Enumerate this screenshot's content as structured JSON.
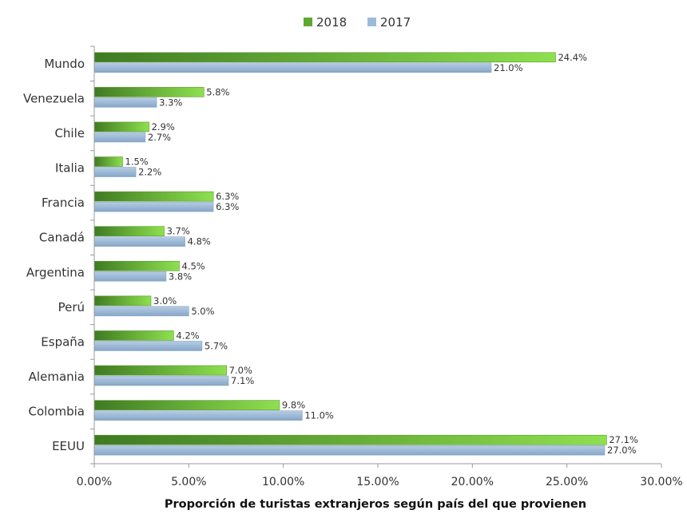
{
  "chart_data": {
    "type": "bar",
    "orientation": "horizontal",
    "title": "",
    "xlabel": "Proporción de turistas extranjeros según país del que provienen",
    "ylabel": "",
    "xlim": [
      0,
      30
    ],
    "x_ticks": [
      0,
      5,
      10,
      15,
      20,
      25,
      30
    ],
    "x_tick_labels": [
      "0.00%",
      "5.00%",
      "10.00%",
      "15.00%",
      "20.00%",
      "25.00%",
      "30.00%"
    ],
    "grid": false,
    "legend_position": "top-center",
    "categories": [
      "Mundo",
      "Venezuela",
      "Chile",
      "Italia",
      "Francia",
      "Canadá",
      "Argentina",
      "Perú",
      "España",
      "Alemania",
      "Colombia",
      "EEUU"
    ],
    "series": [
      {
        "name": "2018",
        "color": "#6fbf3a",
        "values": [
          24.4,
          5.8,
          2.9,
          1.5,
          6.3,
          3.7,
          4.5,
          3.0,
          4.2,
          7.0,
          9.8,
          27.1
        ],
        "labels": [
          "24.4%",
          "5.8%",
          "2.9%",
          "1.5%",
          "6.3%",
          "3.7%",
          "4.5%",
          "3.0%",
          "4.2%",
          "7.0%",
          "9.8%",
          "27.1%"
        ]
      },
      {
        "name": "2017",
        "color": "#9dbbd8",
        "values": [
          21.0,
          3.3,
          2.7,
          2.2,
          6.3,
          4.8,
          3.8,
          5.0,
          5.7,
          7.1,
          11.0,
          27.0
        ],
        "labels": [
          "21.0%",
          "3.3%",
          "2.7%",
          "2.2%",
          "6.3%",
          "4.8%",
          "3.8%",
          "5.0%",
          "5.7%",
          "7.1%",
          "11.0%",
          "27.0%"
        ]
      }
    ]
  }
}
